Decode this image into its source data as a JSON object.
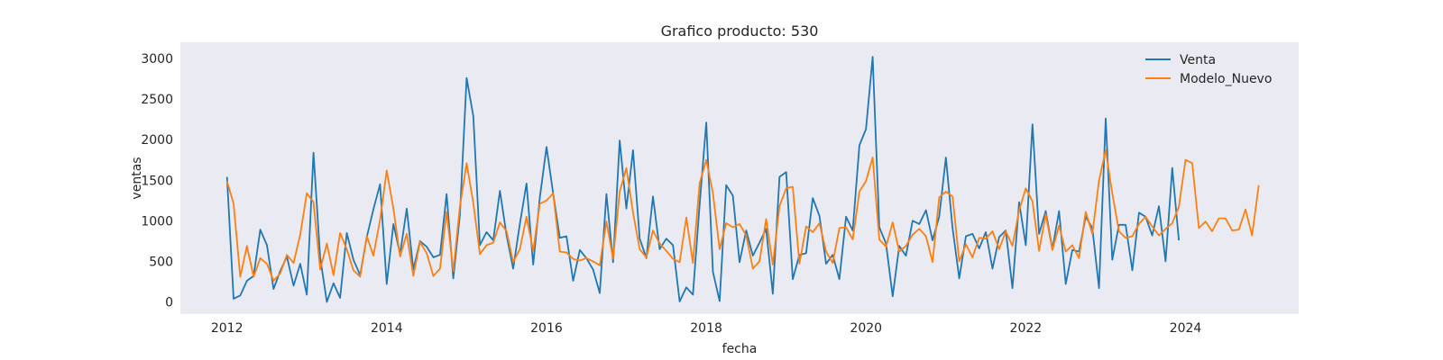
{
  "chart_data": {
    "type": "line",
    "title": "Grafico producto: 530",
    "xlabel": "fecha",
    "ylabel": "ventas",
    "x_start": "2012-01",
    "x_frequency": "monthly",
    "xlim": [
      "2011-06",
      "2025-06"
    ],
    "ylim": [
      -150,
      3200
    ],
    "x_ticks": [
      "2012",
      "2014",
      "2016",
      "2018",
      "2020",
      "2022",
      "2024"
    ],
    "y_ticks": [
      0,
      500,
      1000,
      1500,
      2000,
      2500,
      3000
    ],
    "grid": false,
    "background_color": "#eaeaf2",
    "legend_position": "top-right",
    "series": [
      {
        "name": "Venta",
        "color": "#1f77b4",
        "values": [
          1540,
          40,
          80,
          260,
          320,
          890,
          700,
          160,
          380,
          560,
          200,
          470,
          90,
          1840,
          550,
          0,
          230,
          50,
          850,
          520,
          330,
          800,
          1140,
          1450,
          220,
          960,
          590,
          1150,
          400,
          750,
          680,
          550,
          580,
          1330,
          290,
          1080,
          2760,
          2290,
          700,
          860,
          760,
          1370,
          820,
          410,
          960,
          1460,
          460,
          1290,
          1910,
          1340,
          790,
          810,
          260,
          640,
          540,
          400,
          110,
          1330,
          490,
          1990,
          1150,
          1870,
          780,
          540,
          1300,
          650,
          780,
          700,
          5,
          180,
          90,
          1190,
          2210,
          370,
          10,
          1440,
          1310,
          490,
          880,
          570,
          730,
          900,
          100,
          1540,
          1600,
          280,
          580,
          600,
          1280,
          1060,
          470,
          580,
          280,
          1050,
          880,
          1930,
          2130,
          3020,
          920,
          720,
          70,
          690,
          570,
          1000,
          960,
          1130,
          760,
          1050,
          1780,
          910,
          290,
          810,
          840,
          660,
          860,
          410,
          800,
          880,
          170,
          1230,
          700,
          2190,
          840,
          1120,
          650,
          1120,
          220,
          640,
          620,
          1050,
          910,
          170,
          2260,
          520,
          950,
          950,
          390,
          1100,
          1050,
          820,
          1180,
          500,
          1650,
          760
        ],
        "forecast_values": null
      },
      {
        "name": "Modelo_Nuevo",
        "color": "#ff7f0e",
        "values": [
          1490,
          1210,
          310,
          690,
          310,
          540,
          470,
          260,
          350,
          580,
          480,
          830,
          1340,
          1230,
          400,
          720,
          330,
          850,
          650,
          390,
          310,
          810,
          570,
          1010,
          1620,
          1150,
          560,
          840,
          320,
          740,
          600,
          320,
          410,
          1110,
          380,
          1180,
          1710,
          1220,
          590,
          700,
          730,
          980,
          870,
          490,
          650,
          1050,
          630,
          1210,
          1250,
          1340,
          620,
          610,
          530,
          510,
          540,
          500,
          450,
          990,
          530,
          1360,
          1650,
          1100,
          650,
          550,
          880,
          720,
          630,
          530,
          490,
          1040,
          480,
          1460,
          1750,
          1340,
          650,
          970,
          920,
          960,
          820,
          410,
          500,
          1020,
          460,
          1180,
          1400,
          1420,
          470,
          930,
          860,
          970,
          620,
          480,
          910,
          920,
          770,
          1360,
          1490,
          1780,
          770,
          680,
          980,
          620,
          690,
          830,
          900,
          810,
          490,
          1290,
          1360,
          1300,
          500,
          710,
          550,
          790,
          780,
          870,
          650,
          870,
          690,
          1130,
          1400,
          1240,
          630,
          1080,
          640,
          940,
          620,
          700,
          540,
          1110,
          840,
          1500,
          1870,
          1340,
          870,
          790,
          810,
          960,
          1050,
          930,
          820,
          900,
          970,
          1170,
          1750,
          1710,
          910,
          990,
          870,
          1030,
          1030,
          880,
          890,
          1140,
          820,
          1440
        ]
      }
    ]
  }
}
